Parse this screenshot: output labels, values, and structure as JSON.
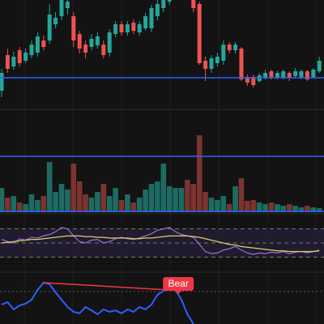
{
  "chart_data": {
    "type": "candlestick",
    "up_color": "#26a69a",
    "down_color": "#ef5350",
    "volume_up_color": "#1d6b62",
    "volume_down_color": "#7b3431",
    "level_color": "#2962ff",
    "price": {
      "ylim": [
        0,
        130
      ],
      "level": 34,
      "open": [
        18,
        62,
        48,
        68,
        55,
        62,
        65,
        80,
        80,
        100,
        110,
        120,
        110,
        88,
        75,
        72,
        74,
        75,
        65,
        88,
        100,
        90,
        102,
        90,
        95,
        95,
        110,
        120,
        128,
        135,
        138,
        142,
        130,
        125,
        55,
        45,
        52,
        55,
        75,
        68,
        70,
        35,
        35,
        30,
        34,
        42,
        34,
        34,
        40,
        36,
        35,
        42,
        35,
        42
      ],
      "high": [
        45,
        70,
        66,
        72,
        70,
        80,
        90,
        86,
        125,
        115,
        135,
        135,
        115,
        92,
        80,
        88,
        90,
        80,
        94,
        104,
        104,
        104,
        106,
        104,
        114,
        124,
        130,
        135,
        140,
        145,
        150,
        148,
        135,
        128,
        60,
        62,
        65,
        80,
        78,
        78,
        72,
        38,
        38,
        40,
        44,
        44,
        43,
        44,
        42,
        46,
        44,
        44,
        46,
        60
      ],
      "low": [
        10,
        40,
        44,
        48,
        52,
        58,
        60,
        68,
        76,
        95,
        105,
        112,
        72,
        64,
        58,
        68,
        70,
        58,
        60,
        84,
        86,
        86,
        88,
        86,
        92,
        90,
        105,
        115,
        124,
        130,
        134,
        132,
        115,
        50,
        30,
        40,
        48,
        50,
        64,
        64,
        30,
        24,
        22,
        28,
        32,
        32,
        32,
        32,
        30,
        34,
        32,
        30,
        33,
        40
      ],
      "close": [
        40,
        45,
        60,
        52,
        65,
        75,
        85,
        72,
        112,
        108,
        130,
        128,
        80,
        70,
        65,
        82,
        85,
        62,
        90,
        100,
        90,
        100,
        92,
        100,
        110,
        120,
        125,
        130,
        135,
        140,
        145,
        138,
        120,
        52,
        45,
        58,
        60,
        75,
        68,
        75,
        32,
        28,
        25,
        37,
        40,
        35,
        40,
        42,
        34,
        42,
        42,
        32,
        44,
        55
      ]
    },
    "volume": {
      "ylim": [
        0,
        120
      ],
      "level": 69,
      "values": [
        30,
        18,
        20,
        12,
        10,
        22,
        15,
        20,
        62,
        25,
        35,
        28,
        60,
        38,
        22,
        18,
        25,
        35,
        20,
        30,
        15,
        22,
        12,
        18,
        28,
        35,
        38,
        60,
        32,
        30,
        30,
        40,
        35,
        95,
        25,
        18,
        15,
        20,
        10,
        32,
        42,
        14,
        15,
        12,
        10,
        12,
        10,
        8,
        10,
        8,
        6,
        8,
        6,
        5
      ]
    },
    "rsi": {
      "ylim": [
        10,
        90
      ],
      "levels": [
        70,
        50,
        30
      ],
      "color": "#9c6fd6",
      "ma_color": "#d9d36a",
      "band_color": "#2a2140",
      "values": [
        55,
        52,
        50,
        56,
        54,
        58,
        57,
        60,
        62,
        66,
        72,
        70,
        60,
        52,
        50,
        54,
        55,
        50,
        52,
        56,
        58,
        56,
        55,
        57,
        60,
        63,
        68,
        70,
        72,
        66,
        62,
        60,
        58,
        48,
        38,
        35,
        36,
        40,
        42,
        45,
        40,
        36,
        34,
        36,
        35,
        37,
        36,
        38,
        35,
        37,
        38,
        36,
        38,
        40
      ],
      "ma": [
        50,
        51,
        52,
        53,
        54,
        55,
        55,
        56,
        57,
        58,
        59,
        60,
        60,
        60,
        59,
        59,
        58,
        58,
        57,
        57,
        57,
        57,
        56,
        56,
        57,
        57,
        58,
        59,
        60,
        60,
        60,
        60,
        59,
        58,
        56,
        54,
        52,
        50,
        48,
        47,
        45,
        44,
        43,
        42,
        41,
        40,
        39,
        39,
        38,
        38,
        38,
        38,
        38,
        39
      ]
    },
    "oscillator": {
      "ylim": [
        0,
        100
      ],
      "level": 67,
      "color": "#2962ff",
      "values": [
        40,
        45,
        30,
        38,
        42,
        50,
        70,
        85,
        82,
        65,
        50,
        35,
        25,
        22,
        35,
        28,
        20,
        30,
        25,
        28,
        22,
        30,
        25,
        35,
        30,
        40,
        60,
        68,
        75,
        70,
        50,
        20,
        0
      ],
      "divergence": {
        "label": "Bear",
        "color": "#f23645",
        "from": [
          7,
          85
        ],
        "to": [
          28,
          70
        ]
      }
    }
  }
}
